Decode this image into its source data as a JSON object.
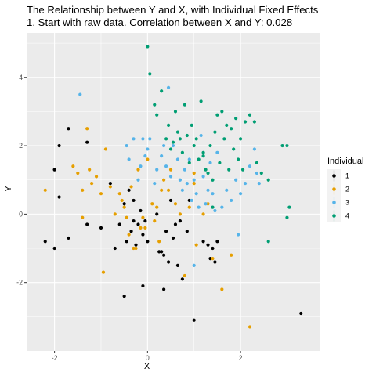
{
  "chart_data": {
    "type": "scatter",
    "title": "The Relationship between Y and X, with Individual Fixed Effects",
    "subtitle": "1. Start with raw data. Correlation between X and Y: 0.028",
    "xlabel": "X",
    "ylabel": "Y",
    "xlim": [
      -2.6,
      3.7
    ],
    "ylim": [
      -4.0,
      5.3
    ],
    "x_ticks": [
      -2,
      0,
      2
    ],
    "y_ticks": [
      -2,
      0,
      2,
      4
    ],
    "x_tick_labels": [
      "-2",
      "0",
      "2"
    ],
    "y_tick_labels": [
      "-2",
      "0",
      "2",
      "4"
    ],
    "grid": true,
    "legend": {
      "title": "Individual",
      "position": "right"
    },
    "series": [
      {
        "name": "1",
        "color": "#000000",
        "points": [
          [
            -2.2,
            -0.8
          ],
          [
            -2.0,
            -1.0
          ],
          [
            -2.0,
            1.3
          ],
          [
            -1.9,
            2.0
          ],
          [
            -1.9,
            0.5
          ],
          [
            -1.7,
            -0.7
          ],
          [
            -1.7,
            2.5
          ],
          [
            -1.3,
            2.1
          ],
          [
            -1.3,
            -0.3
          ],
          [
            -1.0,
            -0.4
          ],
          [
            -0.8,
            0.9
          ],
          [
            -0.7,
            -1.0
          ],
          [
            -0.6,
            -0.3
          ],
          [
            -0.5,
            0.3
          ],
          [
            -0.45,
            -0.8
          ],
          [
            -0.4,
            0.7
          ],
          [
            -0.35,
            -0.5
          ],
          [
            -0.3,
            -0.2
          ],
          [
            -0.3,
            0.4
          ],
          [
            -0.25,
            -0.9
          ],
          [
            -0.2,
            -0.3
          ],
          [
            -0.15,
            0.1
          ],
          [
            -0.1,
            -0.6
          ],
          [
            -0.05,
            -0.2
          ],
          [
            0.0,
            -0.8
          ],
          [
            -0.1,
            -2.1
          ],
          [
            0.2,
            0.0
          ],
          [
            0.25,
            -1.1
          ],
          [
            0.3,
            -1.1
          ],
          [
            0.35,
            -1.2
          ],
          [
            0.4,
            -0.5
          ],
          [
            0.45,
            -1.4
          ],
          [
            0.5,
            0.4
          ],
          [
            0.55,
            -0.7
          ],
          [
            0.6,
            -0.3
          ],
          [
            0.65,
            -1.5
          ],
          [
            0.7,
            -0.2
          ],
          [
            0.75,
            -1.9
          ],
          [
            0.85,
            -0.5
          ],
          [
            0.9,
            0.4
          ],
          [
            1.0,
            -3.1
          ],
          [
            1.2,
            -0.8
          ],
          [
            1.3,
            -0.9
          ],
          [
            1.35,
            -1.3
          ],
          [
            1.4,
            -1.0
          ],
          [
            1.45,
            -1.4
          ],
          [
            1.5,
            -0.8
          ],
          [
            -0.5,
            -2.4
          ],
          [
            0.35,
            -2.2
          ],
          [
            3.3,
            -2.9
          ]
        ]
      },
      {
        "name": "2",
        "color": "#E69F00",
        "points": [
          [
            -2.2,
            0.7
          ],
          [
            -1.6,
            1.4
          ],
          [
            -1.5,
            1.2
          ],
          [
            -1.4,
            -0.1
          ],
          [
            -1.4,
            0.7
          ],
          [
            -1.3,
            2.5
          ],
          [
            -1.25,
            1.3
          ],
          [
            -1.2,
            0.9
          ],
          [
            -1.1,
            1.1
          ],
          [
            -1.0,
            0.6
          ],
          [
            -0.95,
            -1.7
          ],
          [
            -0.9,
            1.9
          ],
          [
            -0.8,
            0.8
          ],
          [
            -0.7,
            0.0
          ],
          [
            -0.6,
            0.6
          ],
          [
            -0.55,
            0.4
          ],
          [
            -0.5,
            0.2
          ],
          [
            -0.45,
            -0.1
          ],
          [
            -0.4,
            -0.6
          ],
          [
            -0.35,
            0.8
          ],
          [
            -0.3,
            -1.0
          ],
          [
            -0.25,
            -1.0
          ],
          [
            -0.2,
            1.3
          ],
          [
            -0.15,
            -0.4
          ],
          [
            -0.1,
            -0.1
          ],
          [
            -0.05,
            -0.4
          ],
          [
            0.0,
            1.6
          ],
          [
            0.1,
            0.3
          ],
          [
            0.15,
            -0.2
          ],
          [
            0.2,
            0.2
          ],
          [
            0.25,
            -0.8
          ],
          [
            0.3,
            0.7
          ],
          [
            0.35,
            1.0
          ],
          [
            0.45,
            0.7
          ],
          [
            0.5,
            1.3
          ],
          [
            0.6,
            0.3
          ],
          [
            0.7,
            0.0
          ],
          [
            0.8,
            -1.8
          ],
          [
            0.9,
            0.2
          ],
          [
            1.0,
            1.2
          ],
          [
            1.05,
            -0.9
          ],
          [
            1.2,
            0.0
          ],
          [
            1.3,
            0.3
          ],
          [
            1.4,
            -1.3
          ],
          [
            1.6,
            -2.2
          ],
          [
            1.8,
            -1.2
          ],
          [
            2.2,
            -3.3
          ],
          [
            1.0,
            0.9
          ]
        ]
      },
      {
        "name": "3",
        "color": "#56B4E9",
        "points": [
          [
            -1.45,
            3.5
          ],
          [
            -0.45,
            2.0
          ],
          [
            -0.4,
            1.6
          ],
          [
            -0.3,
            2.2
          ],
          [
            -0.2,
            1.0
          ],
          [
            -0.15,
            1.4
          ],
          [
            -0.1,
            2.2
          ],
          [
            -0.05,
            1.7
          ],
          [
            0.0,
            1.9
          ],
          [
            0.05,
            2.2
          ],
          [
            0.15,
            0.9
          ],
          [
            0.2,
            1.3
          ],
          [
            0.3,
            1.7
          ],
          [
            0.35,
            2.0
          ],
          [
            0.4,
            1.4
          ],
          [
            0.45,
            3.7
          ],
          [
            0.5,
            1.1
          ],
          [
            0.55,
            2.0
          ],
          [
            0.65,
            1.6
          ],
          [
            0.7,
            1.0
          ],
          [
            0.75,
            0.7
          ],
          [
            0.8,
            1.3
          ],
          [
            0.85,
            0.9
          ],
          [
            0.9,
            1.6
          ],
          [
            0.95,
            0.4
          ],
          [
            1.0,
            1.0
          ],
          [
            1.05,
            0.6
          ],
          [
            1.1,
            0.2
          ],
          [
            1.15,
            2.3
          ],
          [
            1.2,
            1.1
          ],
          [
            1.25,
            0.3
          ],
          [
            1.3,
            0.7
          ],
          [
            1.35,
            1.5
          ],
          [
            1.4,
            0.6
          ],
          [
            1.45,
            0.1
          ],
          [
            1.6,
            0.2
          ],
          [
            1.7,
            0.7
          ],
          [
            1.8,
            0.4
          ],
          [
            1.9,
            1.0
          ],
          [
            2.0,
            0.6
          ],
          [
            2.1,
            0.9
          ],
          [
            2.2,
            1.4
          ],
          [
            2.3,
            1.9
          ],
          [
            2.35,
            1.2
          ],
          [
            2.4,
            0.9
          ],
          [
            1.5,
            1.8
          ],
          [
            1.95,
            -0.6
          ],
          [
            1.0,
            -1.5
          ]
        ]
      },
      {
        "name": "4",
        "color": "#009E73",
        "points": [
          [
            0.0,
            4.9
          ],
          [
            0.05,
            4.1
          ],
          [
            0.15,
            3.2
          ],
          [
            0.2,
            2.9
          ],
          [
            0.3,
            3.6
          ],
          [
            0.4,
            2.2
          ],
          [
            0.45,
            2.6
          ],
          [
            0.5,
            1.9
          ],
          [
            0.55,
            2.1
          ],
          [
            0.6,
            3.0
          ],
          [
            0.65,
            2.4
          ],
          [
            0.7,
            2.2
          ],
          [
            0.75,
            1.8
          ],
          [
            0.8,
            3.2
          ],
          [
            0.85,
            2.3
          ],
          [
            0.9,
            1.5
          ],
          [
            0.95,
            2.6
          ],
          [
            1.0,
            2.0
          ],
          [
            1.05,
            2.2
          ],
          [
            1.1,
            1.6
          ],
          [
            1.15,
            3.3
          ],
          [
            1.2,
            1.8
          ],
          [
            1.25,
            1.3
          ],
          [
            1.3,
            1.2
          ],
          [
            1.35,
            2.0
          ],
          [
            1.4,
            1.0
          ],
          [
            1.45,
            2.4
          ],
          [
            1.5,
            2.9
          ],
          [
            1.55,
            1.5
          ],
          [
            1.6,
            3.0
          ],
          [
            1.65,
            2.2
          ],
          [
            1.7,
            2.6
          ],
          [
            1.75,
            1.3
          ],
          [
            1.8,
            2.5
          ],
          [
            1.85,
            1.9
          ],
          [
            1.9,
            2.8
          ],
          [
            1.95,
            1.6
          ],
          [
            2.0,
            2.2
          ],
          [
            2.05,
            1.3
          ],
          [
            2.1,
            2.7
          ],
          [
            2.2,
            2.9
          ],
          [
            2.3,
            2.7
          ],
          [
            2.35,
            1.5
          ],
          [
            2.45,
            1.2
          ],
          [
            2.6,
            1.0
          ],
          [
            2.9,
            2.0
          ],
          [
            3.0,
            -0.1
          ],
          [
            3.05,
            0.2
          ],
          [
            2.6,
            -0.8
          ],
          [
            1.4,
            0.2
          ],
          [
            1.2,
            1.7
          ],
          [
            3.0,
            2.0
          ]
        ]
      }
    ]
  }
}
